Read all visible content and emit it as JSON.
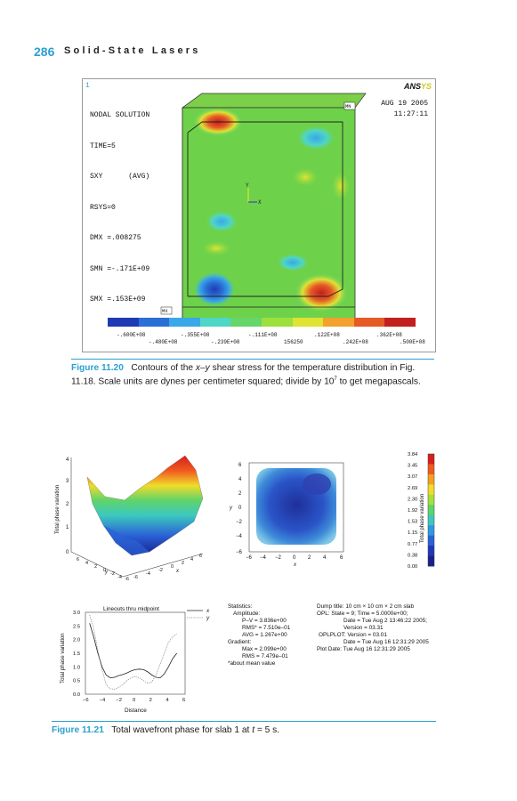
{
  "header": {
    "page_number": "286",
    "running_head": "Solid-State Lasers"
  },
  "figure_1120": {
    "corner_index": "1",
    "logo": "ANSYS",
    "solution_lines": [
      "NODAL SOLUTION",
      "TIME=5",
      "SXY      (AVG)",
      "RSYS=0",
      "DMX =.008275",
      "SMN =-.171E+09",
      "SMX =.153E+09"
    ],
    "date": "AUG 19 2005",
    "time": "11:27:11",
    "mn_label": "MN",
    "mx_label": "MX",
    "axis_y": "Y",
    "axis_x": "X",
    "colorbar_top_labels": [
      "-.600E+08",
      "-.355E+08",
      "-.111E+08",
      ".122E+08",
      ".362E+08"
    ],
    "colorbar_bottom_labels": [
      "-.480E+08",
      "-.239E+08",
      "156250",
      ".242E+08",
      ".500E+08"
    ],
    "colorbar_colors": [
      "#1f3bb3",
      "#2a6fd6",
      "#3aa7e8",
      "#4fd6c6",
      "#66d66a",
      "#9be03c",
      "#e0e234",
      "#f2a12d",
      "#e65a25",
      "#c21f1f"
    ],
    "caption_label": "Figure 11.20",
    "caption_text_1": "Contours of the ",
    "caption_italic": "x–y",
    "caption_text_2": " shear stress for the temperature distribution in Fig. 11.18. Scale units are dynes per centimeter squared; divide by 10",
    "caption_sup": "7",
    "caption_text_3": " to get megapascals."
  },
  "figure_1121": {
    "surface_plot": {
      "ylabel": "Total phase variation",
      "z_ticks": [
        "0",
        "1",
        "2",
        "3",
        "4"
      ],
      "x_axis_letter": "x",
      "y_axis_letter": "y",
      "front_ticks": [
        "6",
        "4",
        "2",
        "0",
        "-2",
        "-4",
        "-6"
      ],
      "side_ticks": [
        "-6",
        "-4",
        "-2",
        "0",
        "2",
        "4",
        "6"
      ]
    },
    "contour_plot": {
      "ylabel": "y",
      "xlabel": "x",
      "y_ticks": [
        "6",
        "4",
        "2",
        "0",
        "−2",
        "−4",
        "−6"
      ],
      "x_ticks": [
        "−6",
        "−4",
        "−2",
        "0",
        "2",
        "4",
        "6"
      ]
    },
    "colorbar": {
      "label": "Total phase variation",
      "ticks": [
        "3.84",
        "3.45",
        "3.07",
        "2.69",
        "2.30",
        "1.92",
        "1.53",
        "1.15",
        "0.77",
        "0.38",
        "0.00"
      ],
      "colors": [
        "#d61e1e",
        "#f05a1e",
        "#f5a021",
        "#f0dc2a",
        "#a6e03a",
        "#5fd46a",
        "#3cc8c0",
        "#2f9ae0",
        "#2a62d6",
        "#2336b8",
        "#1a1f8c"
      ]
    },
    "lineout_chart": {
      "title": "Lineouts thru midpoint",
      "xlabel": "Distance",
      "ylabel": "Total phase variation",
      "legend": [
        "x",
        "y"
      ]
    },
    "statistics": {
      "title": "Statistics:",
      "amplitude": "Amplitude:",
      "pv": "P–V = 3.836e+00",
      "rms": "RMS* = 7.510e–01",
      "avg": "AVG = 1.267e+00",
      "gradient": "Gradient:",
      "max": "Max = 2.099e+00",
      "grms": "RMS = 7.479e–01",
      "note": "*about mean value"
    },
    "dump": {
      "title": "Dump title: 10 cm × 10 cm × 2 cm slab",
      "opl": "OPL: State = 9; Time = 5.0000e+00;",
      "date": "Date = Tue Aug 2 13:46:22 2005;",
      "version": "Version = 03.31",
      "oplplot": "OPLPLOT: Version = 03.01",
      "date2": "Date = Tue Aug 16 12:31:29 2005",
      "plotdate": "Plot Date: Tue Aug 16 12:31:29 2005"
    },
    "caption_label": "Figure 11.21",
    "caption_text": "Total wavefront phase for slab 1 at ",
    "caption_italic": "t",
    "caption_text_2": " = 5 s."
  },
  "chart_data": {
    "type": "line",
    "title": "Lineouts thru midpoint",
    "xlabel": "Distance",
    "ylabel": "Total phase variation",
    "xlim": [
      -6,
      6
    ],
    "ylim": [
      0,
      3
    ],
    "x_ticks": [
      -6,
      -4,
      -2,
      0,
      2,
      4,
      6
    ],
    "y_ticks": [
      0.0,
      0.5,
      1.0,
      1.5,
      2.0,
      2.5,
      3.0
    ],
    "series": [
      {
        "name": "x",
        "x": [
          -5.5,
          -5,
          -4.5,
          -4,
          -3.5,
          -3,
          -2.5,
          -2,
          -1.5,
          -1,
          -0.5,
          0,
          0.5,
          1,
          1.5,
          2,
          2.5,
          3,
          3.5,
          4,
          4.5,
          5
        ],
        "values": [
          2.6,
          2.1,
          1.5,
          1.0,
          0.7,
          0.6,
          0.62,
          0.68,
          0.72,
          0.78,
          0.85,
          0.9,
          0.92,
          0.9,
          0.82,
          0.7,
          0.62,
          0.6,
          0.75,
          1.0,
          1.3,
          1.5
        ]
      },
      {
        "name": "y",
        "x": [
          -5.5,
          -5,
          -4.5,
          -4,
          -3.5,
          -3,
          -2.5,
          -2,
          -1.5,
          -1,
          -0.5,
          0,
          0.5,
          1,
          1.5,
          2,
          2.5,
          3,
          3.5,
          4,
          4.5,
          5
        ],
        "values": [
          2.9,
          2.4,
          1.6,
          0.9,
          0.35,
          0.2,
          0.18,
          0.25,
          0.35,
          0.5,
          0.6,
          0.65,
          0.6,
          0.5,
          0.4,
          0.45,
          0.7,
          1.1,
          1.5,
          1.9,
          2.1,
          2.2
        ]
      }
    ]
  }
}
